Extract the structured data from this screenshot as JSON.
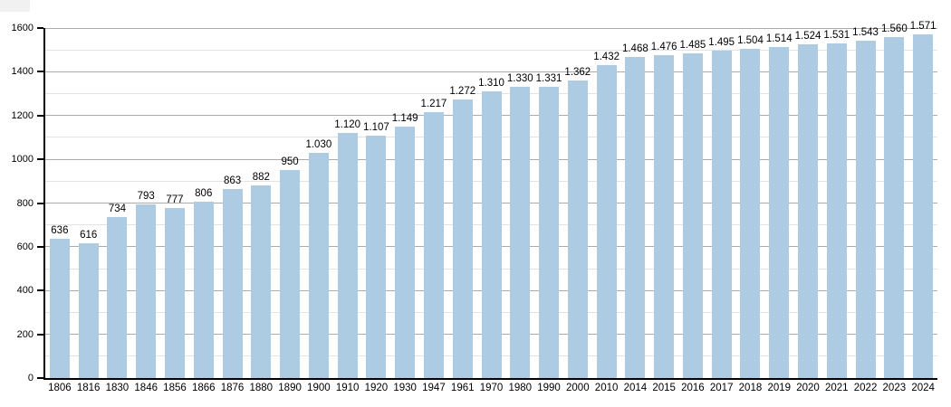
{
  "chart_data": {
    "type": "bar",
    "title": "",
    "xlabel": "",
    "ylabel": "",
    "categories": [
      "1806",
      "1816",
      "1830",
      "1846",
      "1856",
      "1866",
      "1876",
      "1880",
      "1890",
      "1900",
      "1910",
      "1920",
      "1930",
      "1947",
      "1961",
      "1970",
      "1980",
      "1990",
      "2000",
      "2010",
      "2014",
      "2015",
      "2016",
      "2017",
      "2018",
      "2019",
      "2020",
      "2021",
      "2022",
      "2023",
      "2024"
    ],
    "values": [
      636,
      616,
      734,
      793,
      777,
      806,
      863,
      882,
      950,
      1030,
      1120,
      1107,
      1149,
      1217,
      1272,
      1310,
      1330,
      1331,
      1362,
      1432,
      1468,
      1476,
      1485,
      1495,
      1504,
      1514,
      1524,
      1531,
      1543,
      1560,
      1571
    ],
    "value_labels": [
      "636",
      "616",
      "734",
      "793",
      "777",
      "806",
      "863",
      "882",
      "950",
      "1.030",
      "1.120",
      "1.107",
      "1.149",
      "1.217",
      "1.272",
      "1.310",
      "1.330",
      "1.331",
      "1.362",
      "1.432",
      "1.468",
      "1.476",
      "1.485",
      "1.495",
      "1.504",
      "1.514",
      "1.524",
      "1.531",
      "1.543",
      "1.560",
      "1.571"
    ],
    "ylim": [
      0,
      1600
    ],
    "y_major_step": 200,
    "y_minor_step": 100,
    "y_tick_labels": [
      "0",
      "200",
      "400",
      "600",
      "800",
      "1000",
      "1200",
      "1400",
      "1600"
    ],
    "grid": true,
    "legend_position": "none",
    "colors": {
      "bar": "#aecbe4",
      "axis": "#000000",
      "major_grid": "#ababab",
      "minor_grid": "#e2e2e2",
      "text": "#000000",
      "background": "#ffffff"
    }
  }
}
